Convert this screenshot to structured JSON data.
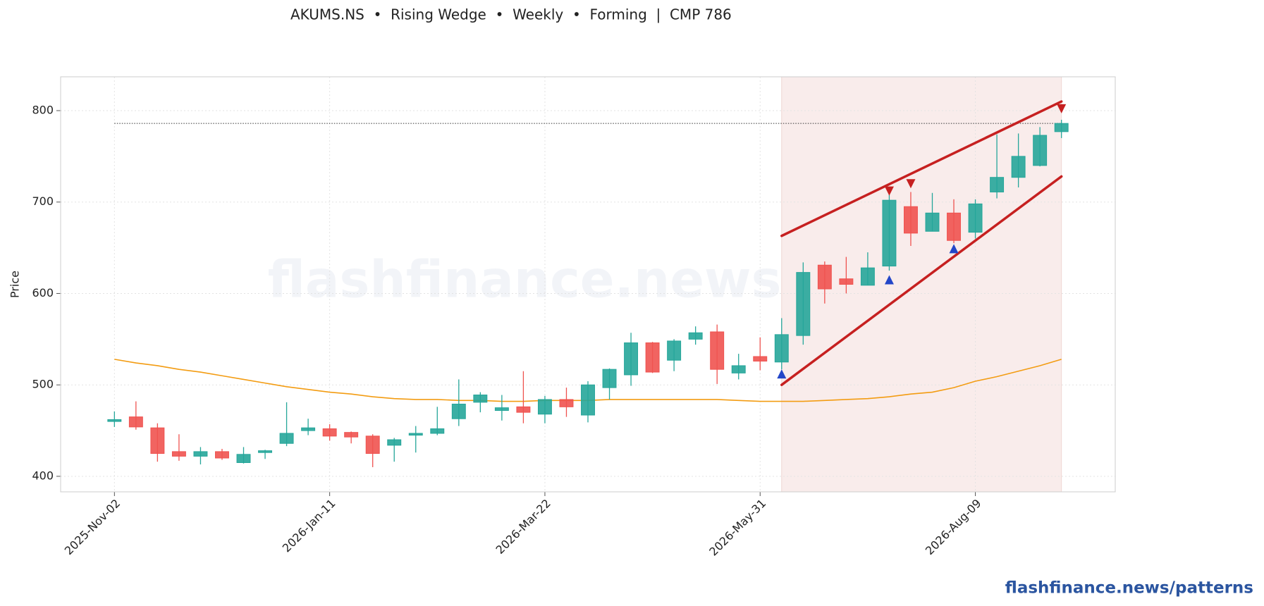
{
  "chart_data": {
    "type": "candlestick",
    "title": "AKUMS.NS  •  Rising Wedge  •  Weekly  •  Forming  |  CMP 786",
    "ylabel": "Price",
    "watermark": "flashfinance.news",
    "footer": "flashfinance.news/patterns",
    "x": [
      "2025-Nov-02",
      "2025-Nov-09",
      "2025-Nov-16",
      "2025-Nov-23",
      "2025-Nov-30",
      "2025-Dec-07",
      "2025-Dec-14",
      "2025-Dec-21",
      "2025-Dec-28",
      "2026-Jan-04",
      "2026-Jan-11",
      "2026-Jan-18",
      "2026-Jan-25",
      "2026-Feb-01",
      "2026-Feb-08",
      "2026-Feb-15",
      "2026-Feb-22",
      "2026-Mar-01",
      "2026-Mar-08",
      "2026-Mar-15",
      "2026-Mar-22",
      "2026-Mar-29",
      "2026-Apr-05",
      "2026-Apr-12",
      "2026-Apr-19",
      "2026-Apr-26",
      "2026-May-03",
      "2026-May-10",
      "2026-May-17",
      "2026-May-24",
      "2026-May-31",
      "2026-Jun-07",
      "2026-Jun-14",
      "2026-Jun-21",
      "2026-Jun-28",
      "2026-Jul-05",
      "2026-Jul-12",
      "2026-Jul-19",
      "2026-Jul-26",
      "2026-Aug-02",
      "2026-Aug-09",
      "2026-Aug-16",
      "2026-Aug-23",
      "2026-Aug-30",
      "2026-Sep-06"
    ],
    "open": [
      460,
      465,
      453,
      427,
      422,
      427,
      415,
      426,
      436,
      450,
      452,
      448,
      444,
      434,
      445,
      447,
      463,
      481,
      472,
      476,
      468,
      484,
      467,
      497,
      511,
      546,
      527,
      550,
      558,
      513,
      531,
      525,
      554,
      631,
      616,
      609,
      630,
      695,
      668,
      688,
      667,
      711,
      727,
      740,
      777
    ],
    "high": [
      471,
      482,
      458,
      446,
      432,
      430,
      432,
      429,
      481,
      463,
      457,
      449,
      446,
      442,
      455,
      476,
      506,
      492,
      489,
      515,
      488,
      497,
      504,
      518,
      557,
      547,
      550,
      564,
      566,
      534,
      552,
      573,
      634,
      635,
      640,
      645,
      710,
      711,
      710,
      703,
      703,
      774,
      775,
      782,
      790
    ],
    "low": [
      454,
      451,
      416,
      417,
      413,
      418,
      414,
      419,
      433,
      445,
      439,
      436,
      410,
      416,
      426,
      445,
      455,
      470,
      461,
      458,
      458,
      465,
      459,
      484,
      499,
      513,
      515,
      544,
      501,
      506,
      516,
      517,
      544,
      589,
      600,
      609,
      625,
      652,
      668,
      655,
      660,
      704,
      716,
      739,
      770
    ],
    "close": [
      462,
      454,
      425,
      422,
      427,
      420,
      424,
      428,
      447,
      453,
      444,
      443,
      425,
      440,
      447,
      452,
      479,
      489,
      475,
      470,
      484,
      476,
      500,
      517,
      546,
      514,
      548,
      557,
      517,
      521,
      526,
      555,
      623,
      605,
      610,
      628,
      702,
      666,
      688,
      658,
      698,
      727,
      750,
      773,
      786
    ],
    "up_color": "#26a69a",
    "down_color": "#ef5350",
    "overlay": {
      "color": "#f39c12",
      "values": [
        528,
        524,
        521,
        517,
        514,
        510,
        506,
        502,
        498,
        495,
        492,
        490,
        487,
        485,
        484,
        484,
        483,
        483,
        482,
        482,
        483,
        483,
        483,
        484,
        484,
        484,
        484,
        484,
        484,
        483,
        482,
        482,
        482,
        483,
        484,
        485,
        487,
        490,
        492,
        497,
        504,
        509,
        515,
        521,
        528
      ]
    },
    "cmp_line": 786,
    "highlight": [
      "2026-Jun-07",
      "2026-Sep-06"
    ],
    "trendlines": [
      {
        "x": [
          "2026-Jun-07",
          "2026-Sep-06"
        ],
        "values": [
          663,
          810
        ],
        "color": "#c62020"
      },
      {
        "x": [
          "2026-Jun-07",
          "2026-Sep-06"
        ],
        "values": [
          500,
          728
        ],
        "color": "#c62020"
      }
    ],
    "markers": [
      {
        "x": "2026-Jul-12",
        "value": 712,
        "shape": "down",
        "color": "#c62020"
      },
      {
        "x": "2026-Jul-19",
        "value": 720,
        "shape": "down",
        "color": "#c62020"
      },
      {
        "x": "2026-Sep-06",
        "value": 802,
        "shape": "down",
        "color": "#c62020"
      },
      {
        "x": "2026-Jun-07",
        "value": 512,
        "shape": "up",
        "color": "#2346c8"
      },
      {
        "x": "2026-Jul-12",
        "value": 615,
        "shape": "up",
        "color": "#2346c8"
      },
      {
        "x": "2026-Aug-02",
        "value": 649,
        "shape": "up",
        "color": "#2346c8"
      }
    ],
    "ylim": [
      383,
      837
    ],
    "yticks": [
      400,
      500,
      600,
      700,
      800
    ],
    "xticks": [
      "2025-Nov-02",
      "2026-Jan-11",
      "2026-Mar-22",
      "2026-May-31",
      "2026-Aug-09"
    ],
    "grid": true
  }
}
